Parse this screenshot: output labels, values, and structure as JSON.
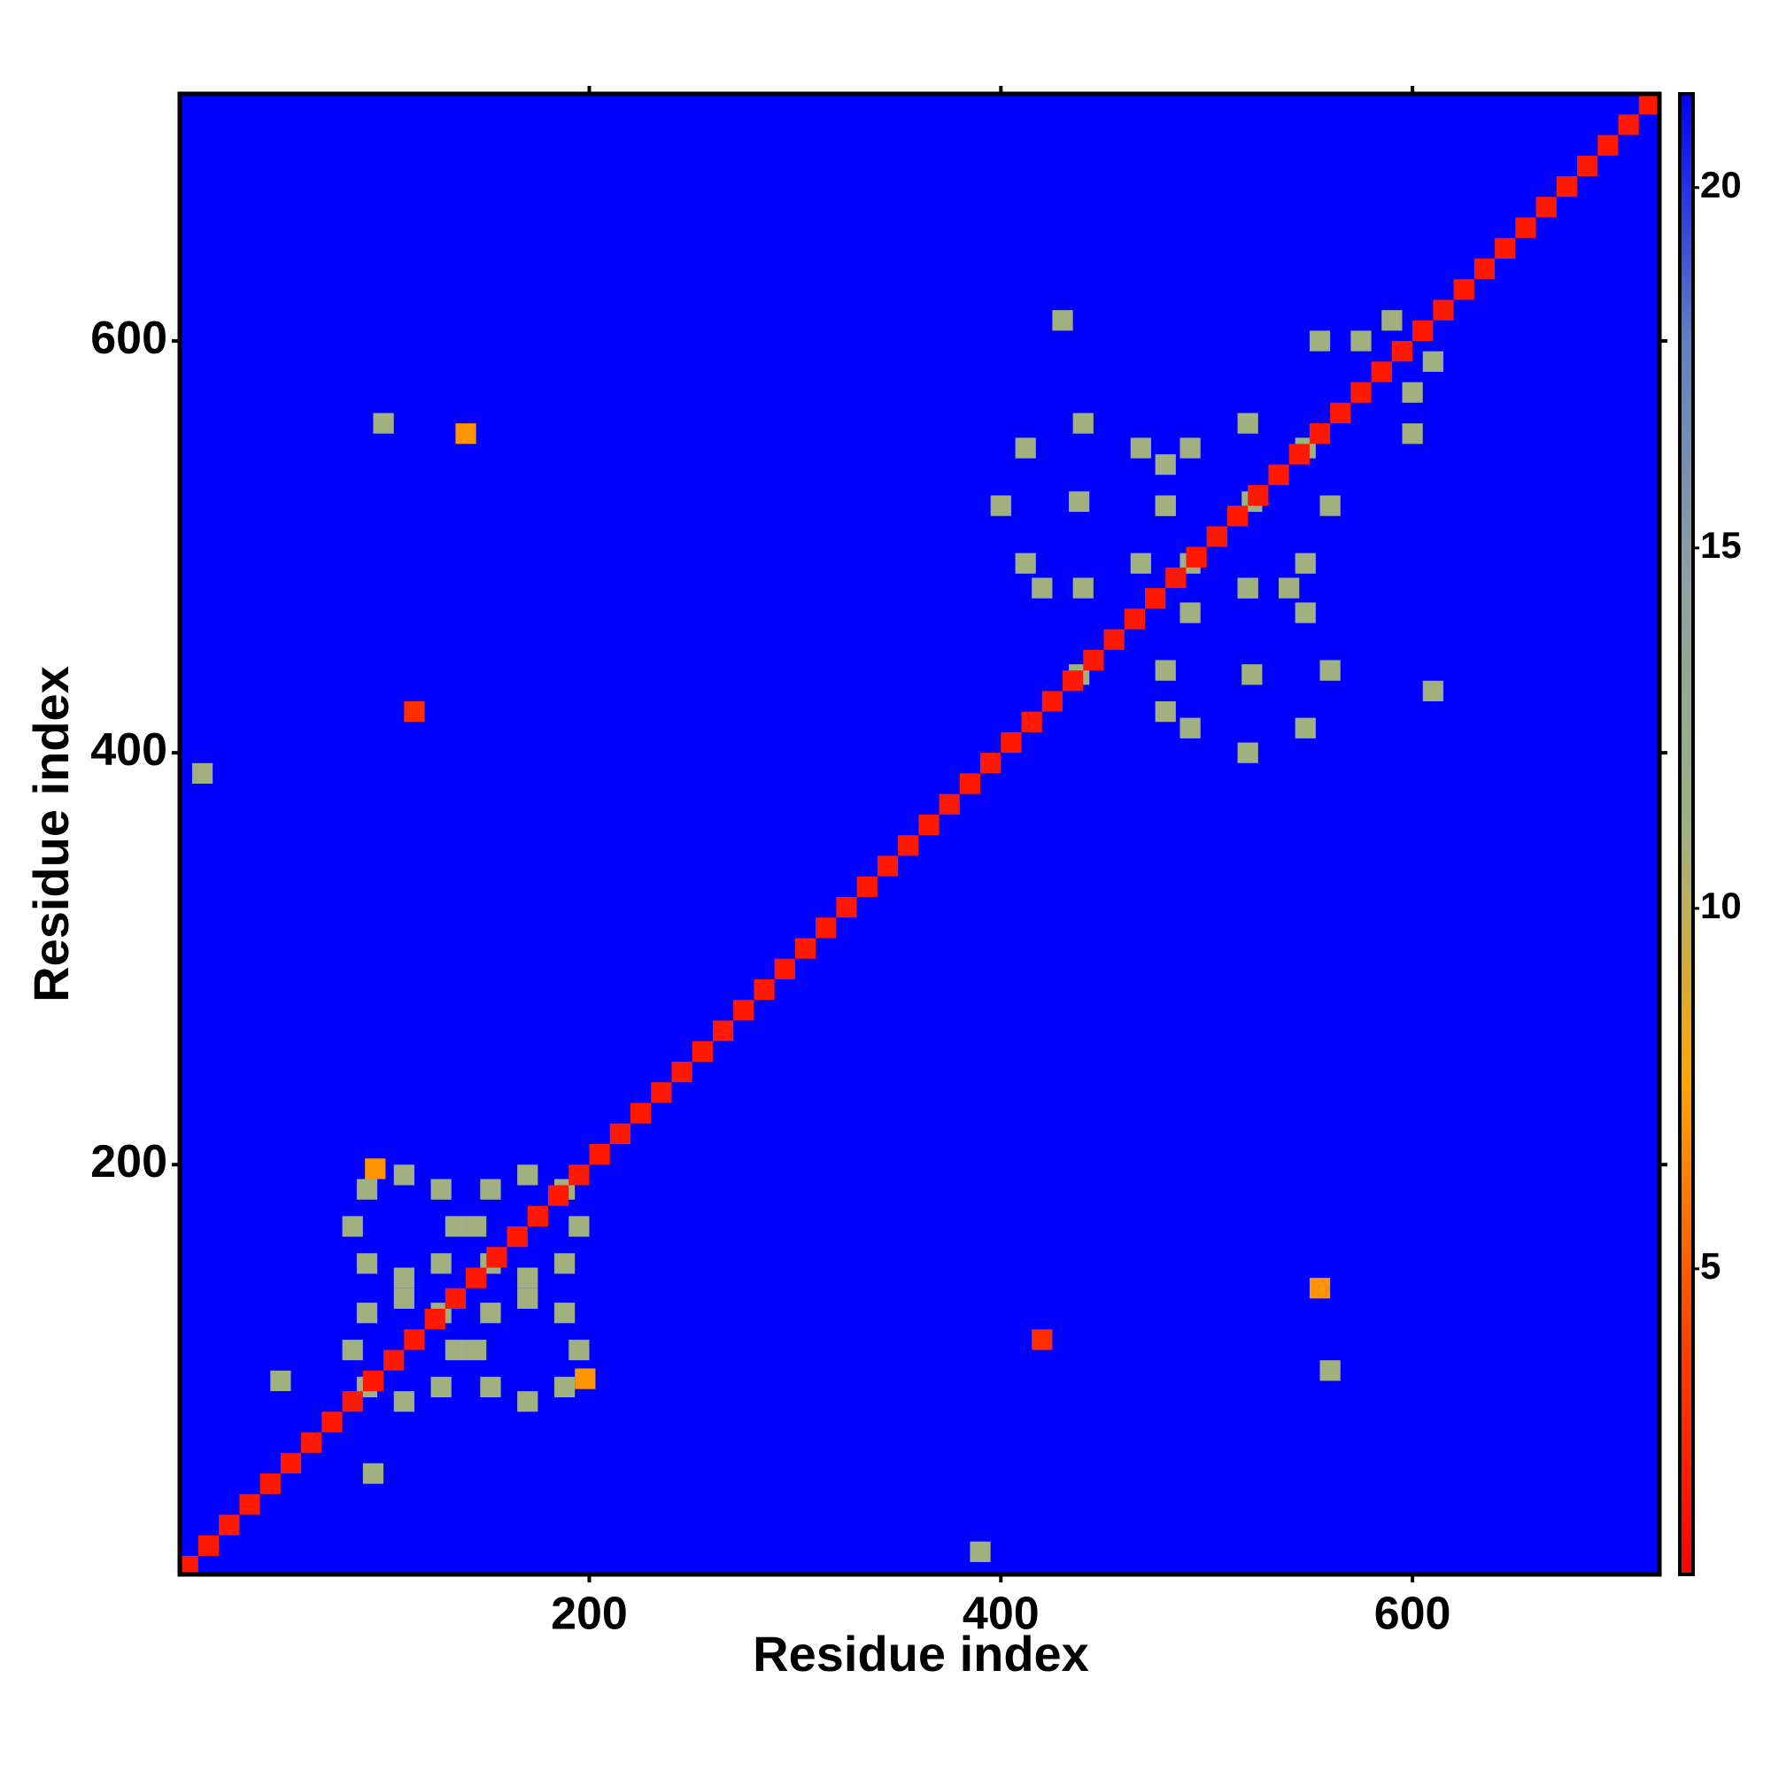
{
  "chart_data": {
    "type": "heatmap",
    "xlabel": "Residue index",
    "ylabel": "Residue index",
    "xlim": [
      1,
      720
    ],
    "ylim": [
      1,
      720
    ],
    "xticks": [
      200,
      400,
      600
    ],
    "yticks": [
      200,
      400,
      600
    ],
    "zlim": [
      0.76,
      21.3
    ],
    "zticks": [
      5,
      10,
      15,
      20
    ],
    "colorscale": [
      "#ff0000",
      "#ff4500",
      "#ffa500",
      "#a0b080",
      "#8fa0a0",
      "#6080c0",
      "#0000ff"
    ],
    "x": [
      135,
      128,
      110,
      92,
      85,
      92,
      110,
      128,
      195,
      188,
      170,
      152,
      145,
      152,
      170,
      188,
      135,
      128,
      110,
      92,
      85,
      92,
      110,
      128,
      195,
      188,
      170,
      152,
      145,
      152,
      170,
      188,
      480,
      468,
      440,
      412,
      400,
      412,
      440,
      468,
      560,
      548,
      520,
      492,
      480,
      492,
      520,
      548,
      540,
      522,
      480,
      438,
      420,
      438,
      480,
      522,
      560,
      548,
      520,
      492,
      480,
      492,
      520,
      548,
      575,
      600,
      610,
      590,
      555,
      600,
      96,
      198,
      140,
      555,
      115,
      420,
      100,
      560,
      390,
      12,
      50,
      95,
      610,
      430,
      5,
      15,
      25,
      35,
      45,
      55,
      65,
      75,
      85,
      95,
      105,
      115,
      125,
      135,
      145,
      155,
      165,
      175,
      185,
      195,
      205,
      215,
      225,
      235,
      245,
      255,
      265,
      275,
      285,
      295,
      305,
      315,
      325,
      335,
      345,
      355,
      365,
      375,
      385,
      395,
      405,
      415,
      425,
      435,
      445,
      455,
      465,
      475,
      485,
      495,
      505,
      515,
      525,
      535,
      545,
      555,
      565,
      575,
      585,
      595,
      605,
      615,
      625,
      635,
      645,
      655,
      665,
      675,
      685,
      695,
      705,
      715
    ],
    "y": [
      170,
      188,
      195,
      188,
      170,
      152,
      145,
      152,
      110,
      128,
      135,
      128,
      110,
      92,
      85,
      92,
      110,
      128,
      135,
      128,
      110,
      92,
      85,
      92,
      170,
      188,
      195,
      188,
      170,
      152,
      145,
      152,
      520,
      548,
      560,
      548,
      520,
      492,
      480,
      492,
      440,
      468,
      480,
      468,
      440,
      412,
      400,
      412,
      480,
      522,
      540,
      522,
      480,
      438,
      420,
      438,
      520,
      548,
      560,
      548,
      520,
      492,
      480,
      492,
      600,
      575,
      590,
      610,
      600,
      555,
      198,
      96,
      555,
      140,
      420,
      115,
      560,
      100,
      12,
      390,
      95,
      50,
      430,
      610,
      5,
      15,
      25,
      35,
      45,
      55,
      65,
      75,
      85,
      95,
      105,
      115,
      125,
      135,
      145,
      155,
      165,
      175,
      185,
      195,
      205,
      215,
      225,
      235,
      245,
      255,
      265,
      275,
      285,
      295,
      305,
      315,
      325,
      335,
      345,
      355,
      365,
      375,
      385,
      395,
      405,
      415,
      425,
      435,
      445,
      455,
      465,
      475,
      485,
      495,
      505,
      515,
      525,
      535,
      545,
      555,
      565,
      575,
      585,
      595,
      605,
      615,
      625,
      635,
      645,
      655,
      665,
      675,
      685,
      695,
      705,
      715
    ],
    "values": [
      11,
      11,
      11,
      11,
      11,
      11,
      11,
      11,
      11,
      11,
      11,
      11,
      11,
      11,
      11,
      11,
      11,
      11,
      11,
      11,
      11,
      11,
      11,
      11,
      11,
      11,
      11,
      11,
      11,
      11,
      11,
      11,
      11,
      11,
      11,
      11,
      11,
      11,
      11,
      11,
      11,
      11,
      11,
      11,
      11,
      11,
      11,
      11,
      11,
      11,
      11,
      11,
      11,
      11,
      11,
      11,
      11,
      11,
      11,
      11,
      11,
      11,
      11,
      11,
      11,
      11,
      11,
      11,
      11,
      11,
      7,
      7,
      7,
      7,
      3,
      3,
      11,
      11,
      11,
      11,
      11,
      11,
      11,
      11,
      2,
      2,
      2,
      2,
      2,
      2,
      2,
      2,
      2,
      2,
      2,
      2,
      2,
      2,
      2,
      2,
      2,
      2,
      2,
      2,
      2,
      2,
      2,
      2,
      2,
      2,
      2,
      2,
      2,
      2,
      2,
      2,
      2,
      2,
      2,
      2,
      2,
      2,
      2,
      2,
      2,
      2,
      2,
      2,
      2,
      2,
      2,
      2,
      2,
      2,
      2,
      2,
      2,
      2,
      2,
      2,
      2,
      2,
      2,
      2,
      2,
      2,
      2,
      2,
      2,
      2,
      2,
      2,
      2,
      2,
      2,
      2
    ]
  }
}
